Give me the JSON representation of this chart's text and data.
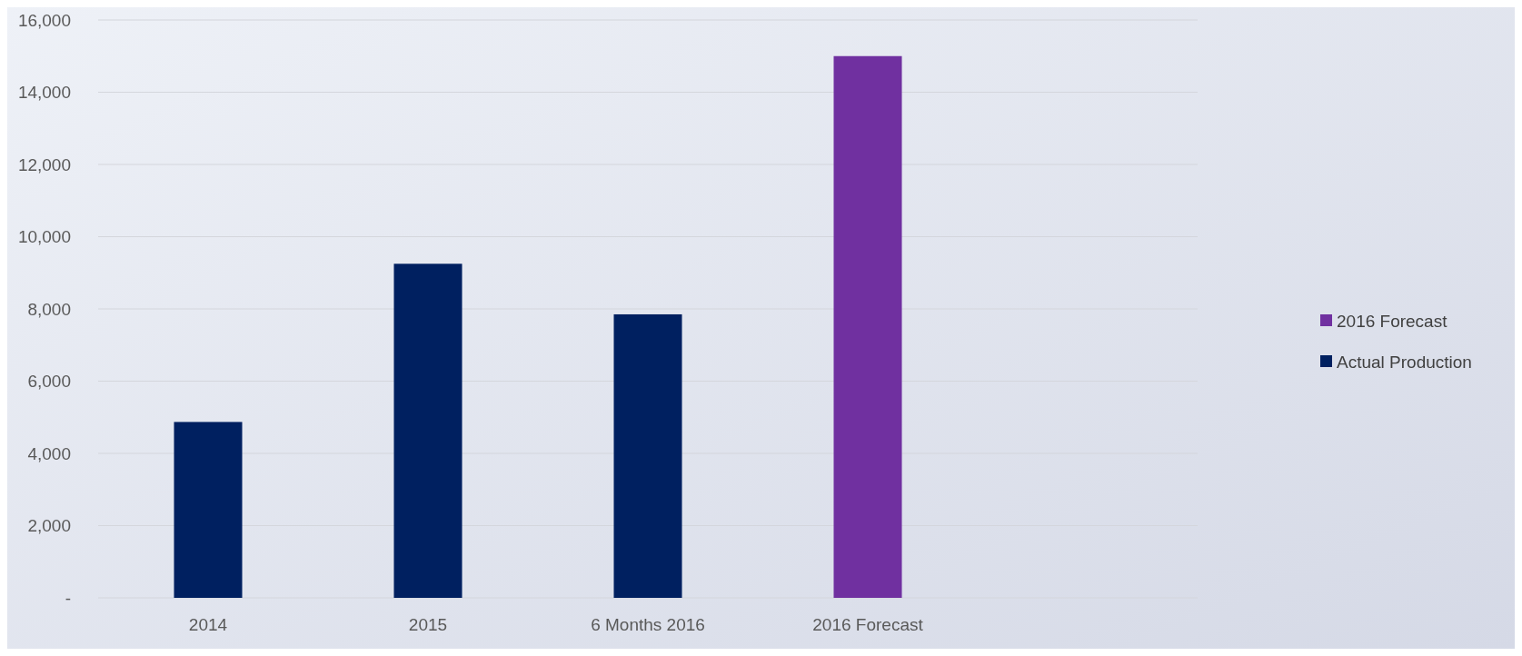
{
  "chart_data": {
    "type": "bar",
    "categories": [
      "2014",
      "2015",
      "6 Months 2016",
      "2016 Forecast",
      null
    ],
    "series": [
      {
        "name": "Actual Production",
        "color": "#002060",
        "values": [
          4870,
          9250,
          7850,
          null,
          null
        ]
      },
      {
        "name": "2016 Forecast",
        "color": "#7030a0",
        "values": [
          null,
          null,
          null,
          15000,
          null
        ]
      }
    ],
    "stacked": true,
    "ylim": [
      0,
      16000
    ],
    "yticks": [
      {
        "value": 0,
        "label": "-"
      },
      {
        "value": 2000,
        "label": "2,000"
      },
      {
        "value": 4000,
        "label": "4,000"
      },
      {
        "value": 6000,
        "label": "6,000"
      },
      {
        "value": 8000,
        "label": "8,000"
      },
      {
        "value": 10000,
        "label": "10,000"
      },
      {
        "value": 12000,
        "label": "12,000"
      },
      {
        "value": 14000,
        "label": "14,000"
      },
      {
        "value": 16000,
        "label": "16,000"
      }
    ],
    "grid": "y",
    "legend": "right"
  }
}
